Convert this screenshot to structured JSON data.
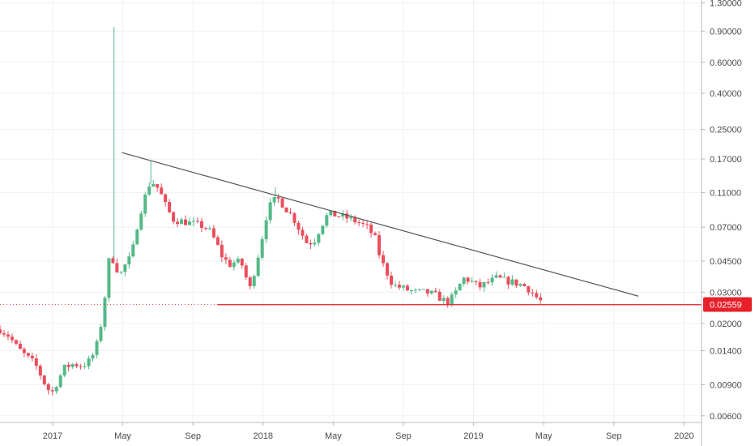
{
  "chart_data": {
    "type": "candlestick",
    "scale": "log",
    "grid": true,
    "colors": {
      "up": "#53b987",
      "down": "#eb4d5c",
      "trendline": "#555555",
      "support": "#e8202a",
      "price_tag": "#e8202a"
    },
    "y_ticks": [
      "1.30000",
      "0.90000",
      "0.60000",
      "0.40000",
      "0.25000",
      "0.17000",
      "0.11000",
      "0.07000",
      "0.04500",
      "0.03000",
      "0.02000",
      "0.01400",
      "0.00900",
      "0.00600"
    ],
    "ylim": [
      0.0055,
      1.35
    ],
    "x_ticks": [
      {
        "label": "2017",
        "t": 0.0
      },
      {
        "label": "May",
        "t": 4.0
      },
      {
        "label": "Sep",
        "t": 8.0
      },
      {
        "label": "2018",
        "t": 12.0
      },
      {
        "label": "May",
        "t": 16.0
      },
      {
        "label": "Sep",
        "t": 20.0
      },
      {
        "label": "2019",
        "t": 24.0
      },
      {
        "label": "May",
        "t": 28.0
      },
      {
        "label": "Sep",
        "t": 32.0
      },
      {
        "label": "2020",
        "t": 36.0
      }
    ],
    "x_unit": "months since Jan 2017",
    "xlim": [
      -3.0,
      37.0
    ],
    "last_price": "0.02559",
    "support": {
      "value": 0.0255,
      "t_start": 9.4,
      "t_end": 37.0
    },
    "trendline": {
      "t_start": 3.95,
      "v_start": 0.185,
      "t_end": 33.4,
      "v_end": 0.0285
    },
    "price_anchors": [
      [
        -3.0,
        0.0185
      ],
      [
        -2.5,
        0.017
      ],
      [
        -2.0,
        0.0145
      ],
      [
        -1.5,
        0.013
      ],
      [
        -1.0,
        0.0118
      ],
      [
        -0.6,
        0.0098
      ],
      [
        -0.3,
        0.0085
      ],
      [
        0.0,
        0.0082
      ],
      [
        0.3,
        0.0095
      ],
      [
        0.7,
        0.0113
      ],
      [
        1.2,
        0.0118
      ],
      [
        1.7,
        0.0115
      ],
      [
        2.2,
        0.0125
      ],
      [
        2.6,
        0.016
      ],
      [
        2.9,
        0.024
      ],
      [
        3.2,
        0.045
      ],
      [
        3.5,
        0.046
      ],
      [
        3.8,
        0.037
      ],
      [
        4.2,
        0.044
      ],
      [
        4.5,
        0.048
      ],
      [
        4.8,
        0.07
      ],
      [
        5.1,
        0.092
      ],
      [
        5.5,
        0.122
      ],
      [
        5.8,
        0.125
      ],
      [
        6.1,
        0.112
      ],
      [
        6.5,
        0.09
      ],
      [
        6.9,
        0.077
      ],
      [
        7.3,
        0.076
      ],
      [
        7.8,
        0.074
      ],
      [
        8.4,
        0.072
      ],
      [
        8.9,
        0.068
      ],
      [
        9.3,
        0.058
      ],
      [
        9.7,
        0.047
      ],
      [
        10.1,
        0.043
      ],
      [
        10.5,
        0.045
      ],
      [
        10.9,
        0.042
      ],
      [
        11.2,
        0.03
      ],
      [
        11.6,
        0.043
      ],
      [
        11.9,
        0.058
      ],
      [
        12.2,
        0.082
      ],
      [
        12.5,
        0.098
      ],
      [
        12.9,
        0.101
      ],
      [
        13.3,
        0.089
      ],
      [
        13.7,
        0.08
      ],
      [
        14.1,
        0.067
      ],
      [
        14.5,
        0.057
      ],
      [
        14.9,
        0.058
      ],
      [
        15.3,
        0.071
      ],
      [
        15.7,
        0.083
      ],
      [
        16.1,
        0.082
      ],
      [
        16.6,
        0.08
      ],
      [
        17.1,
        0.077
      ],
      [
        17.6,
        0.073
      ],
      [
        18.0,
        0.069
      ],
      [
        18.4,
        0.06
      ],
      [
        18.7,
        0.046
      ],
      [
        19.1,
        0.038
      ],
      [
        19.4,
        0.033
      ],
      [
        19.8,
        0.032
      ],
      [
        20.2,
        0.031
      ],
      [
        20.7,
        0.03
      ],
      [
        21.3,
        0.03
      ],
      [
        21.8,
        0.029
      ],
      [
        22.3,
        0.027
      ],
      [
        22.6,
        0.0265
      ],
      [
        23.0,
        0.03
      ],
      [
        23.4,
        0.036
      ],
      [
        23.8,
        0.035
      ],
      [
        24.3,
        0.032
      ],
      [
        24.8,
        0.034
      ],
      [
        25.3,
        0.036
      ],
      [
        25.8,
        0.035
      ],
      [
        26.3,
        0.034
      ],
      [
        26.8,
        0.033
      ],
      [
        27.2,
        0.031
      ],
      [
        27.6,
        0.028
      ],
      [
        28.0,
        0.0257
      ]
    ],
    "wick_spikes": [
      {
        "t": 3.5,
        "high": 0.95
      },
      {
        "t": 12.7,
        "high": 0.118
      },
      {
        "t": 5.6,
        "high": 0.165
      }
    ]
  }
}
